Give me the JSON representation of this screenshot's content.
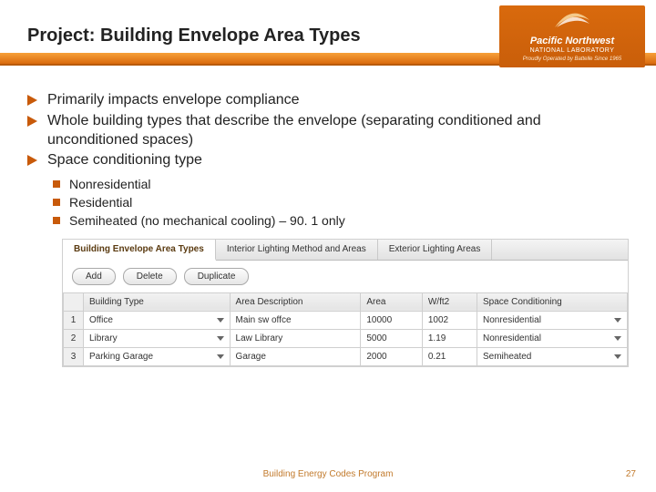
{
  "header": {
    "title": "Project: Building Envelope Area Types",
    "logo": {
      "line1": "Pacific Northwest",
      "line2": "NATIONAL LABORATORY",
      "line3": "Proudly Operated by Battelle Since 1965"
    }
  },
  "bullets": [
    "Primarily impacts envelope compliance",
    "Whole building types that describe the envelope (separating conditioned and unconditioned spaces)",
    "Space conditioning type"
  ],
  "sub_bullets": [
    "Nonresidential",
    "Residential",
    "Semiheated (no mechanical cooling) – 90. 1 only"
  ],
  "ui": {
    "tabs": [
      {
        "label": "Building Envelope Area Types",
        "active": true
      },
      {
        "label": "Interior Lighting Method and Areas",
        "active": false
      },
      {
        "label": "Exterior Lighting Areas",
        "active": false
      }
    ],
    "buttons": {
      "add": "Add",
      "delete": "Delete",
      "duplicate": "Duplicate"
    },
    "columns": [
      "",
      "Building Type",
      "Area Description",
      "Area",
      "W/ft2",
      "Space Conditioning"
    ],
    "rows": [
      {
        "n": "1",
        "bt": "Office",
        "desc": "Main sw offce",
        "area": "10000",
        "wft2": "1002",
        "sc": "Nonresidential"
      },
      {
        "n": "2",
        "bt": "Library",
        "desc": "Law Library",
        "area": "5000",
        "wft2": "1.19",
        "sc": "Nonresidential"
      },
      {
        "n": "3",
        "bt": "Parking Garage",
        "desc": "Garage",
        "area": "2000",
        "wft2": "0.21",
        "sc": "Semiheated"
      }
    ]
  },
  "footer": {
    "program": "Building Energy Codes Program",
    "page": "27"
  },
  "colors": {
    "accent": "#c85a0a"
  }
}
